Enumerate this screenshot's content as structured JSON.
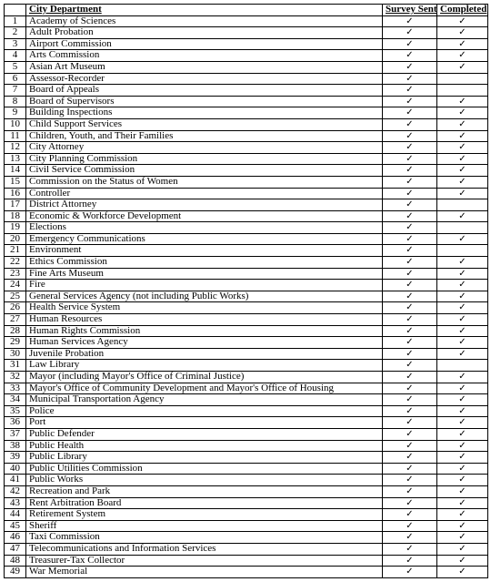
{
  "headers": {
    "num": "",
    "department": "City Department",
    "survey_sent": "Survey Sent",
    "completed": "Completed"
  },
  "check_glyph": "✓",
  "rows": [
    {
      "n": "1",
      "dept": "Academy of Sciences",
      "sent": true,
      "done": true
    },
    {
      "n": "2",
      "dept": "Adult Probation",
      "sent": true,
      "done": true
    },
    {
      "n": "3",
      "dept": "Airport Commission",
      "sent": true,
      "done": true
    },
    {
      "n": "4",
      "dept": "Arts Commission",
      "sent": true,
      "done": true
    },
    {
      "n": "5",
      "dept": "Asian Art Museum",
      "sent": true,
      "done": true
    },
    {
      "n": "6",
      "dept": "Assessor-Recorder",
      "sent": true,
      "done": false
    },
    {
      "n": "7",
      "dept": "Board of Appeals",
      "sent": true,
      "done": false
    },
    {
      "n": "8",
      "dept": "Board of Supervisors",
      "sent": true,
      "done": true
    },
    {
      "n": "9",
      "dept": "Building Inspections",
      "sent": true,
      "done": true
    },
    {
      "n": "10",
      "dept": "Child Support Services",
      "sent": true,
      "done": true
    },
    {
      "n": "11",
      "dept": "Children, Youth, and Their Families",
      "sent": true,
      "done": true
    },
    {
      "n": "12",
      "dept": "City Attorney",
      "sent": true,
      "done": true
    },
    {
      "n": "13",
      "dept": "City Planning Commission",
      "sent": true,
      "done": true
    },
    {
      "n": "14",
      "dept": "Civil Service Commission",
      "sent": true,
      "done": true
    },
    {
      "n": "15",
      "dept": "Commission on the Status of Women",
      "sent": true,
      "done": true
    },
    {
      "n": "16",
      "dept": "Controller",
      "sent": true,
      "done": true
    },
    {
      "n": "17",
      "dept": "District Attorney",
      "sent": true,
      "done": false
    },
    {
      "n": "18",
      "dept": "Economic & Workforce Development",
      "sent": true,
      "done": true
    },
    {
      "n": "19",
      "dept": "Elections",
      "sent": true,
      "done": false
    },
    {
      "n": "20",
      "dept": "Emergency Communications",
      "sent": true,
      "done": true
    },
    {
      "n": "21",
      "dept": "Environment",
      "sent": true,
      "done": false
    },
    {
      "n": "22",
      "dept": "Ethics Commission",
      "sent": true,
      "done": true
    },
    {
      "n": "23",
      "dept": "Fine Arts Museum",
      "sent": true,
      "done": true
    },
    {
      "n": "24",
      "dept": "Fire",
      "sent": true,
      "done": true
    },
    {
      "n": "25",
      "dept": "General Services Agency (not including Public Works)",
      "sent": true,
      "done": true
    },
    {
      "n": "26",
      "dept": "Health Service System",
      "sent": true,
      "done": true
    },
    {
      "n": "27",
      "dept": "Human Resources",
      "sent": true,
      "done": true
    },
    {
      "n": "28",
      "dept": "Human Rights Commission",
      "sent": true,
      "done": true
    },
    {
      "n": "29",
      "dept": "Human Services Agency",
      "sent": true,
      "done": true
    },
    {
      "n": "30",
      "dept": "Juvenile Probation",
      "sent": true,
      "done": true
    },
    {
      "n": "31",
      "dept": "Law Library",
      "sent": true,
      "done": false
    },
    {
      "n": "32",
      "dept": "Mayor (including Mayor's Office of Criminal Justice)",
      "sent": true,
      "done": true
    },
    {
      "n": "33",
      "dept": "Mayor's Office of Community Development and Mayor's Office of Housing",
      "sent": true,
      "done": true
    },
    {
      "n": "34",
      "dept": "Municipal Transportation Agency",
      "sent": true,
      "done": true
    },
    {
      "n": "35",
      "dept": "Police",
      "sent": true,
      "done": true
    },
    {
      "n": "36",
      "dept": "Port",
      "sent": true,
      "done": true
    },
    {
      "n": "37",
      "dept": "Public Defender",
      "sent": true,
      "done": true
    },
    {
      "n": "38",
      "dept": "Public Health",
      "sent": true,
      "done": true
    },
    {
      "n": "39",
      "dept": "Public Library",
      "sent": true,
      "done": true
    },
    {
      "n": "40",
      "dept": "Public Utilities Commission",
      "sent": true,
      "done": true
    },
    {
      "n": "41",
      "dept": "Public Works",
      "sent": true,
      "done": true
    },
    {
      "n": "42",
      "dept": "Recreation and Park",
      "sent": true,
      "done": true
    },
    {
      "n": "43",
      "dept": "Rent Arbitration Board",
      "sent": true,
      "done": true
    },
    {
      "n": "44",
      "dept": "Retirement System",
      "sent": true,
      "done": true
    },
    {
      "n": "45",
      "dept": "Sheriff",
      "sent": true,
      "done": true
    },
    {
      "n": "46",
      "dept": "Taxi Commission",
      "sent": true,
      "done": true
    },
    {
      "n": "47",
      "dept": "Telecommunications and Information Services",
      "sent": true,
      "done": true
    },
    {
      "n": "48",
      "dept": "Treasurer-Tax Collector",
      "sent": true,
      "done": true
    },
    {
      "n": "49",
      "dept": "War Memorial",
      "sent": true,
      "done": true
    }
  ]
}
